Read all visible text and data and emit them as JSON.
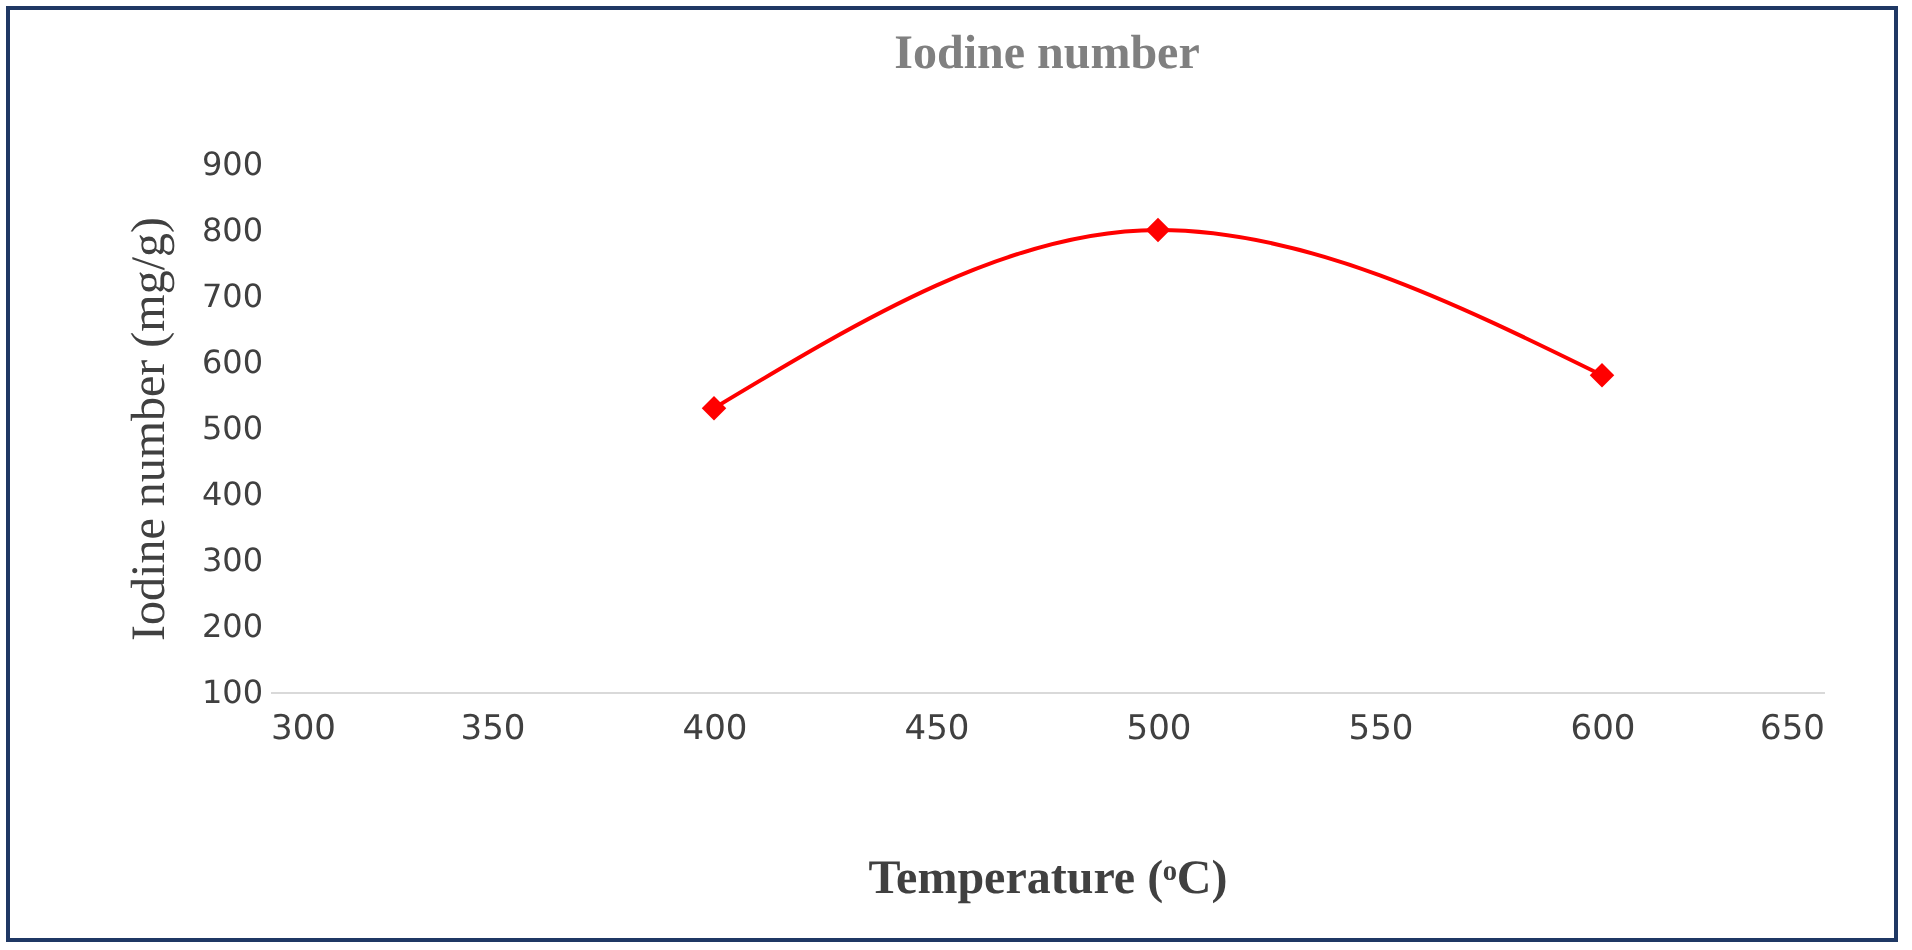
{
  "chart_data": {
    "type": "line",
    "title": "Iodine number",
    "xlabel": "Temperature (ᵒC)",
    "ylabel": "Iodine number (mg/g)",
    "x": [
      400,
      500,
      600
    ],
    "series": [
      {
        "color": "#ff0000",
        "values": [
          530,
          800,
          580
        ]
      }
    ],
    "xlim": [
      300,
      650
    ],
    "xticks": [
      300,
      350,
      400,
      450,
      500,
      550,
      600,
      650
    ],
    "ylim": [
      100,
      900
    ],
    "yticks": [
      100,
      200,
      300,
      400,
      500,
      600,
      700,
      800,
      900
    ],
    "marker": "diamond",
    "line_style": "solid",
    "grid": false
  }
}
